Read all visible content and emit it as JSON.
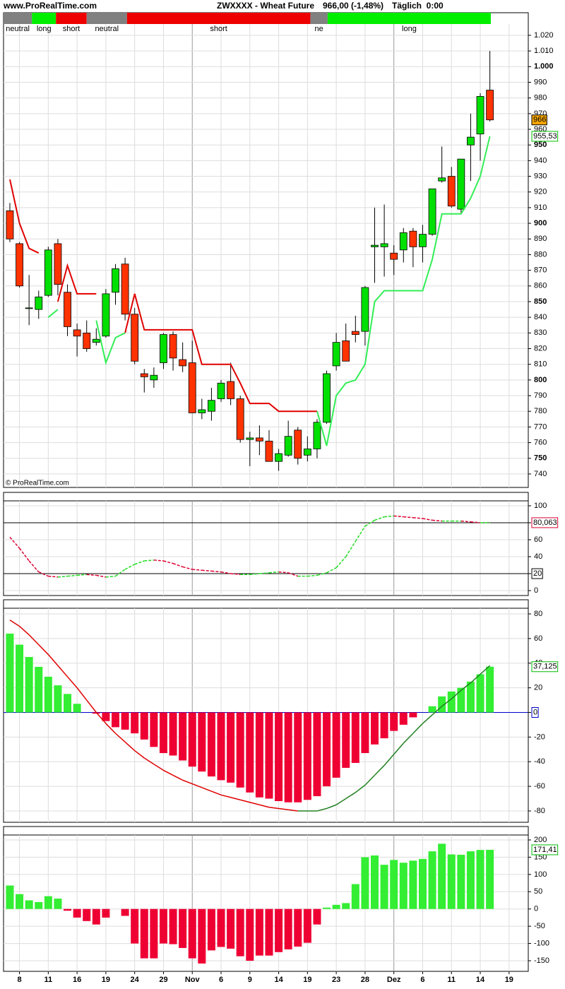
{
  "chart_data": [
    {
      "type": "candlestick",
      "source": "www.ProRealTime.com",
      "title": "ZWXXXX - Wheat Future",
      "quote": "966,00 (-1,48%)",
      "period": "Täglich  0:00",
      "watermark": "© ProRealTime.com",
      "regimes": [
        {
          "label": "neutral",
          "color": "#808080",
          "from": -0.66,
          "to": 2.3
        },
        {
          "label": "long",
          "color": "#00ee00",
          "from": 2.3,
          "to": 4.8
        },
        {
          "label": "short",
          "color": "#ee0000",
          "from": 4.8,
          "to": 8.0
        },
        {
          "label": "neutral",
          "color": "#808080",
          "from": 8.0,
          "to": 12.2
        },
        {
          "label": "short",
          "color": "#ee0000",
          "from": 12.2,
          "to": 31.3
        },
        {
          "label": "ne",
          "color": "#808080",
          "from": 31.3,
          "to": 33.1
        },
        {
          "label": "long",
          "color": "#00ee00",
          "from": 33.1,
          "to": 50.1
        }
      ],
      "open": [
        908,
        887,
        846,
        845,
        854,
        887,
        856,
        832,
        830,
        824,
        828,
        856,
        874,
        842,
        804,
        800,
        811,
        829,
        813,
        811,
        779,
        780,
        788,
        799,
        788,
        762,
        763,
        761,
        748,
        752,
        768,
        752,
        756,
        773,
        809,
        825,
        831,
        831,
        885,
        885,
        881,
        883,
        895,
        885,
        893,
        927,
        930,
        909,
        950,
        957,
        985
      ],
      "high": [
        913,
        888,
        867,
        857,
        885,
        890,
        861,
        836,
        838,
        833,
        858,
        874,
        878,
        846,
        807,
        808,
        830,
        831,
        824,
        825,
        788,
        795,
        800,
        811,
        790,
        767,
        771,
        768,
        756,
        774,
        770,
        764,
        775,
        806,
        830,
        836,
        841,
        860,
        910,
        912,
        886,
        897,
        897,
        899,
        922,
        949,
        936,
        941,
        970,
        983,
        1010
      ],
      "low": [
        888,
        859,
        835,
        839,
        853,
        854,
        828,
        815,
        818,
        822,
        827,
        848,
        838,
        810,
        792,
        795,
        807,
        806,
        805,
        779,
        775,
        774,
        786,
        784,
        760,
        745,
        752,
        748,
        742,
        751,
        746,
        748,
        750,
        772,
        806,
        812,
        824,
        822,
        862,
        866,
        867,
        875,
        872,
        875,
        892,
        926,
        910,
        906,
        927,
        940,
        965
      ],
      "close": [
        890,
        860,
        846,
        853,
        883,
        861,
        834,
        828,
        820,
        826,
        855,
        871,
        842,
        812,
        802,
        803,
        829,
        814,
        809,
        779,
        781,
        787,
        798,
        788,
        762,
        763,
        761,
        748,
        753,
        764,
        750,
        756,
        773,
        804,
        824,
        812,
        829,
        859,
        886,
        887,
        877,
        894,
        885,
        893,
        922,
        929,
        911,
        941,
        955,
        981,
        966
      ],
      "up_color": "#00e000",
      "down_color": "#ff3300",
      "series": [
        {
          "color": "#e00000",
          "values": [
            928,
            900,
            884,
            881,
            null,
            850,
            873,
            855,
            855,
            855,
            null,
            null,
            830,
            855,
            832,
            832,
            832,
            832,
            832,
            832,
            810,
            810,
            810,
            810,
            798,
            785,
            785,
            785,
            780,
            780,
            780,
            780,
            780,
            null,
            null,
            null,
            null,
            null,
            null,
            null,
            null,
            null,
            null,
            null,
            null,
            null,
            null,
            null,
            null,
            null,
            null
          ]
        },
        {
          "color": "#33ee55",
          "values": [
            null,
            null,
            null,
            null,
            840,
            845,
            null,
            null,
            null,
            838,
            811,
            827,
            830,
            null,
            null,
            null,
            null,
            null,
            null,
            null,
            null,
            null,
            null,
            null,
            null,
            null,
            null,
            null,
            null,
            null,
            null,
            null,
            780,
            758,
            790,
            798,
            800,
            810,
            850,
            857,
            857,
            857,
            857,
            857,
            877,
            906,
            906,
            906,
            916,
            930,
            955.53
          ]
        }
      ],
      "ylim": [
        731.4,
        1027.2
      ],
      "yticks": [
        740,
        750,
        760,
        770,
        780,
        790,
        800,
        810,
        820,
        830,
        840,
        850,
        860,
        870,
        880,
        890,
        900,
        910,
        920,
        930,
        940,
        950,
        960,
        970,
        980,
        990,
        {
          "value": 1000,
          "label": "1.000"
        },
        {
          "value": 1010,
          "label": "1.010"
        },
        {
          "value": 1020,
          "label": "1.020"
        }
      ],
      "markers": [
        {
          "value": 966,
          "label": "966",
          "color": "#000000",
          "background": "#f7a600"
        },
        {
          "value": 955.53,
          "label": "955,53",
          "color": "#00c000",
          "background": "#ffffff"
        }
      ],
      "grid": true
    },
    {
      "type": "line",
      "series": [
        {
          "up_color": "#22dd22",
          "down_color": "#dd0033",
          "values": [
            63,
            50,
            35,
            22,
            17,
            16,
            17,
            18,
            19,
            18,
            16,
            17,
            25,
            31,
            35,
            36,
            35,
            32,
            28,
            25,
            24,
            23,
            22,
            20,
            19,
            19,
            20,
            21,
            22,
            21,
            17,
            17,
            18,
            21,
            27,
            40,
            58,
            76,
            83,
            87,
            88,
            87,
            86,
            85,
            83,
            82,
            82,
            82,
            81,
            80,
            80.063
          ]
        }
      ],
      "hlines": [
        80,
        20
      ],
      "hline_color": "#000000",
      "ylim": [
        -5.8,
        105.8
      ],
      "yticks": [
        0,
        20,
        40,
        60,
        80,
        100
      ],
      "markers": [
        {
          "value": 80.063,
          "label": "80,063",
          "color": "#dd0033",
          "background": "#ffffff"
        },
        {
          "value": 20,
          "label": "20",
          "color": "#000000",
          "background": "#ffffff"
        }
      ],
      "grid": true
    },
    {
      "type": "bar",
      "values": [
        64,
        55,
        45,
        37,
        29,
        22,
        15,
        7,
        0,
        -1,
        -7,
        -12,
        -14,
        -17,
        -22,
        -28,
        -33,
        -35,
        -39,
        -44,
        -48,
        -52,
        -55,
        -57,
        -61,
        -65,
        -69,
        -70,
        -72,
        -73,
        -73,
        -71,
        -68,
        -60,
        -53,
        -45,
        -41,
        -33,
        -26,
        -21,
        -15,
        -10,
        -4,
        0,
        5,
        13,
        17,
        20,
        25,
        31,
        37.125
      ],
      "positive_color": "#33ee33",
      "negative_color": "#ee0033",
      "series": [
        {
          "up_color": "#208020",
          "down_color": "#e00000",
          "values": [
            75,
            70,
            63,
            55,
            47,
            38,
            29,
            20,
            10,
            0,
            -9,
            -17,
            -24,
            -31,
            -37,
            -42,
            -47,
            -51,
            -55,
            -58,
            -61,
            -64,
            -67,
            -69,
            -71,
            -73,
            -75,
            -77,
            -78,
            -79,
            -80,
            -80,
            -80,
            -78,
            -75,
            -70,
            -65,
            -59,
            -51,
            -43,
            -34,
            -25,
            -17,
            -9,
            -2,
            5,
            11,
            18,
            24,
            31,
            38
          ]
        }
      ],
      "hlines": [
        0
      ],
      "hline_color": "#0000cc",
      "ylim": [
        -89.2,
        84.6
      ],
      "yticks": [
        -80,
        -60,
        -40,
        -20,
        0,
        20,
        40,
        60,
        80
      ],
      "markers": [
        {
          "value": 37.125,
          "label": "37,125",
          "color": "#00bb00",
          "background": "#ffffff"
        },
        {
          "value": 0,
          "label": "0",
          "color": "#0000cc",
          "background": "#ffffff"
        }
      ],
      "grid": true
    },
    {
      "type": "bar",
      "values": [
        68,
        43,
        25,
        20,
        37,
        30,
        -5,
        -25,
        -35,
        -45,
        -25,
        0,
        -20,
        -100,
        -143,
        -143,
        -100,
        -102,
        -113,
        -143,
        -158,
        -120,
        -110,
        -115,
        -137,
        -150,
        -135,
        -135,
        -125,
        -117,
        -109,
        -98,
        -45,
        4,
        12,
        17,
        72,
        150,
        155,
        128,
        142,
        134,
        140,
        145,
        167,
        189,
        158,
        157,
        167,
        171,
        171.41
      ],
      "positive_color": "#33ee33",
      "negative_color": "#ee0033",
      "ylim": [
        -180.7,
        214.3
      ],
      "yticks": [
        -150,
        -100,
        -50,
        0,
        50,
        100,
        150,
        200
      ],
      "markers": [
        {
          "value": 171.41,
          "label": "171,41",
          "color": "#00bb00",
          "background": "#ffffff"
        }
      ],
      "xlim": [
        -0.66,
        54
      ],
      "xticks": [
        {
          "value": 1,
          "label": "8"
        },
        {
          "value": 4,
          "label": "11"
        },
        {
          "value": 7,
          "label": "16"
        },
        {
          "value": 10,
          "label": "19"
        },
        {
          "value": 13,
          "label": "24"
        },
        {
          "value": 16,
          "label": "29"
        },
        {
          "value": 19,
          "label": "Nov"
        },
        {
          "value": 22,
          "label": "6"
        },
        {
          "value": 25,
          "label": "9"
        },
        {
          "value": 28,
          "label": "14"
        },
        {
          "value": 31,
          "label": "19"
        },
        {
          "value": 34,
          "label": "23"
        },
        {
          "value": 37,
          "label": "28"
        },
        {
          "value": 40,
          "label": "Dez"
        },
        {
          "value": 43,
          "label": "6"
        },
        {
          "value": 46,
          "label": "11"
        },
        {
          "value": 49,
          "label": "14"
        },
        {
          "value": 52,
          "label": "19"
        }
      ],
      "grid": true
    }
  ]
}
